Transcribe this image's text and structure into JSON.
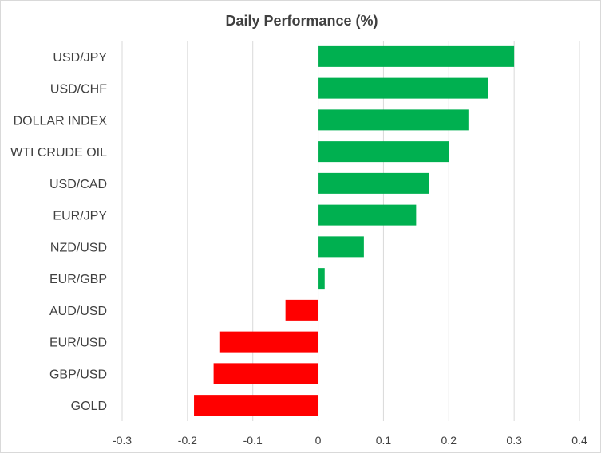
{
  "chart_data": {
    "type": "bar",
    "orientation": "horizontal",
    "title": "Daily Performance  (%)",
    "categories": [
      "USD/JPY",
      "USD/CHF",
      "DOLLAR INDEX",
      "WTI CRUDE OIL",
      "USD/CAD",
      "EUR/JPY",
      "NZD/USD",
      "EUR/GBP",
      "AUD/USD",
      "EUR/USD",
      "GBP/USD",
      "GOLD"
    ],
    "values": [
      0.3,
      0.26,
      0.23,
      0.2,
      0.17,
      0.15,
      0.07,
      0.01,
      -0.05,
      -0.15,
      -0.16,
      -0.19
    ],
    "xlim": [
      -0.3,
      0.4
    ],
    "ticks": [
      -0.3,
      -0.2,
      -0.1,
      0,
      0.1,
      0.2,
      0.3,
      0.4
    ],
    "tick_labels": [
      "-0.3",
      "-0.2",
      "-0.1",
      "0",
      "0.1",
      "0.2",
      "0.3",
      "0.4"
    ],
    "grid": true,
    "legend": "none",
    "colors": {
      "positive": "#00b050",
      "negative": "#ff0000",
      "grid": "#d9d9d9",
      "text": "#404040"
    }
  }
}
